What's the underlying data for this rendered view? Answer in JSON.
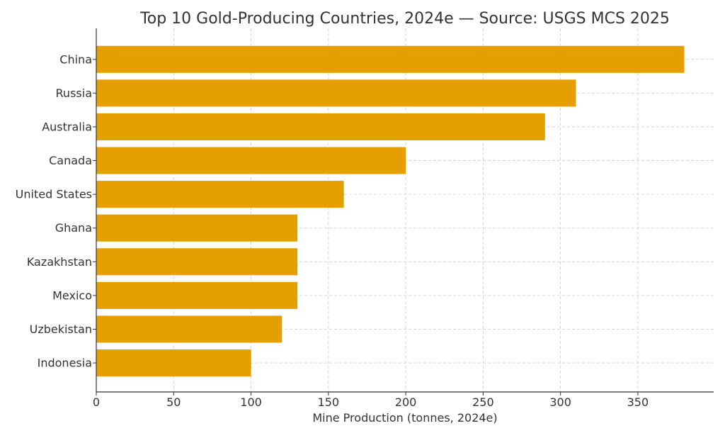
{
  "chart_data": {
    "type": "bar",
    "orientation": "horizontal",
    "title": "Top 10 Gold-Producing Countries, 2024e — Source: USGS MCS 2025",
    "xlabel": "Mine Production (tonnes, 2024e)",
    "ylabel": "",
    "categories": [
      "China",
      "Russia",
      "Australia",
      "Canada",
      "United States",
      "Ghana",
      "Kazakhstan",
      "Mexico",
      "Uzbekistan",
      "Indonesia"
    ],
    "values": [
      380,
      310,
      290,
      200,
      160,
      130,
      130,
      130,
      120,
      100
    ],
    "xlim": [
      0,
      399
    ],
    "xticks": [
      0,
      50,
      100,
      150,
      200,
      250,
      300,
      350
    ],
    "grid": true,
    "legend": "none",
    "bar_color": "#E69F00"
  }
}
